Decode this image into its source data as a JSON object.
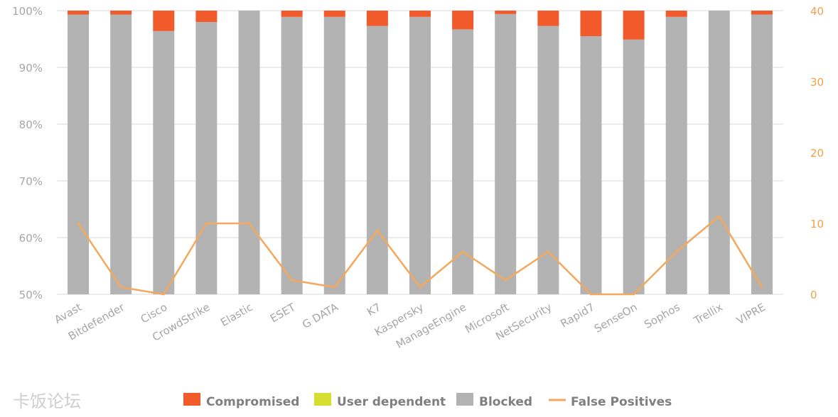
{
  "watermark": "卡饭论坛",
  "colors": {
    "compromised": "#f15a2b",
    "user_dependent": "#d6de32",
    "blocked": "#b3b3b3",
    "false_positives": "#f4a85c",
    "grid": "#d9d9d9"
  },
  "chart_data": {
    "type": "bar",
    "stacked": true,
    "categories": [
      "Avast",
      "Bitdefender",
      "Cisco",
      "CrowdStrike",
      "Elastic",
      "ESET",
      "G DATA",
      "K7",
      "Kaspersky",
      "ManageEngine",
      "Microsoft",
      "NetSecurity",
      "Rapid7",
      "SenseOn",
      "Sophos",
      "Trellix",
      "VIPRE"
    ],
    "series": [
      {
        "name": "Blocked",
        "values": [
          99.3,
          99.3,
          96.4,
          98.0,
          100.0,
          98.9,
          98.9,
          97.3,
          98.9,
          96.7,
          99.4,
          97.3,
          95.5,
          94.9,
          98.9,
          100.0,
          99.3
        ]
      },
      {
        "name": "User dependent",
        "values": [
          0,
          0,
          0,
          0,
          0,
          0,
          0,
          0,
          0,
          0,
          0,
          0,
          0,
          0,
          0,
          0,
          0
        ]
      },
      {
        "name": "Compromised",
        "values": [
          0.7,
          0.7,
          3.6,
          2.0,
          0.0,
          1.1,
          1.1,
          2.7,
          1.1,
          3.3,
          0.6,
          2.7,
          4.5,
          5.1,
          1.1,
          0.0,
          0.7
        ]
      }
    ],
    "line_series": {
      "name": "False Positives",
      "axis": "right",
      "values": [
        10,
        1,
        0,
        10,
        10,
        2,
        1,
        9,
        1,
        6,
        2,
        6,
        0,
        0,
        6,
        11,
        1
      ]
    },
    "ylim": [
      50,
      100
    ],
    "y_ticks": [
      "50%",
      "60%",
      "70%",
      "80%",
      "90%",
      "100%"
    ],
    "y2lim": [
      0,
      40
    ],
    "y2_ticks": [
      "0",
      "10",
      "20",
      "30",
      "40"
    ],
    "grid": true,
    "legend_position": "bottom",
    "legend": [
      "Compromised",
      "User dependent",
      "Blocked",
      "False Positives"
    ]
  }
}
